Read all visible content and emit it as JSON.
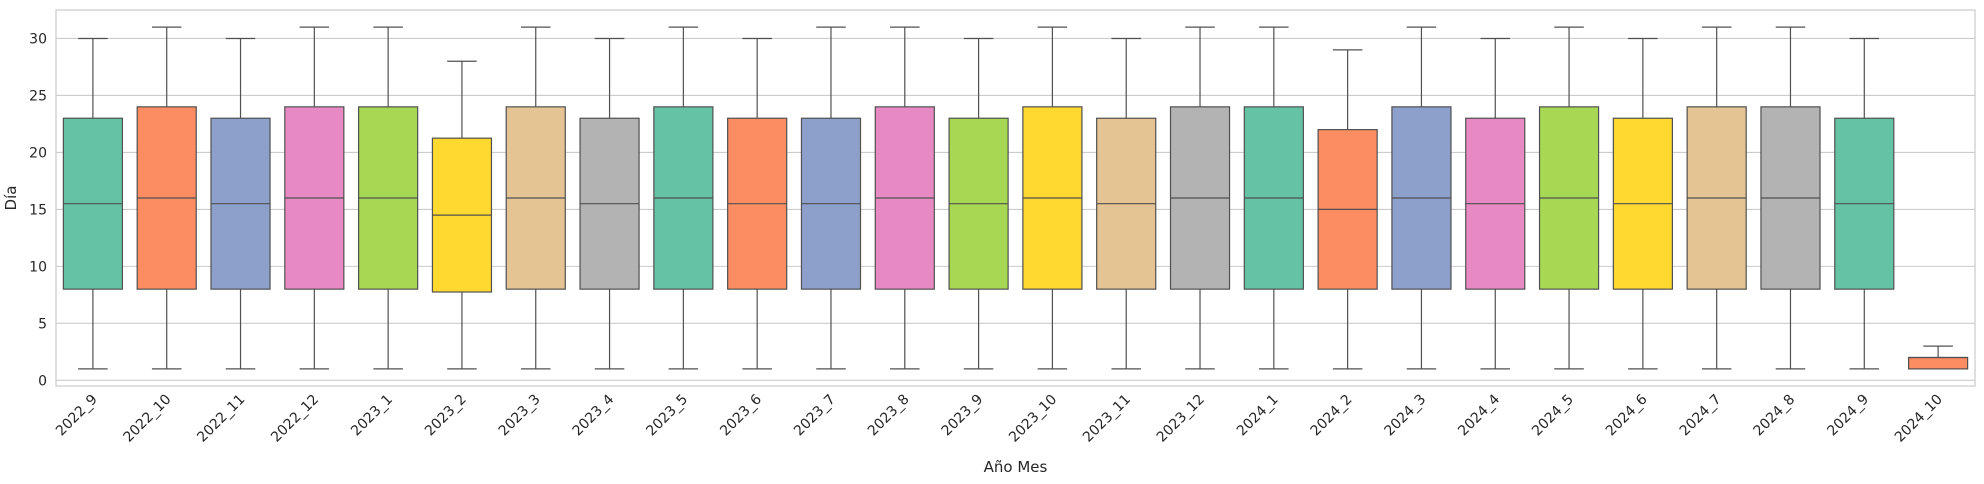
{
  "chart_data": {
    "type": "box",
    "xlabel": "Año Mes",
    "ylabel": "Día",
    "ylim": [
      -0.5,
      32.5
    ],
    "yticks": [
      0,
      5,
      10,
      15,
      20,
      25,
      30
    ],
    "grid": true,
    "palette": [
      "#66c2a5",
      "#fc8d62",
      "#8da0cb",
      "#e78ac3",
      "#a6d854",
      "#ffd92f",
      "#e5c494",
      "#b3b3b3"
    ],
    "categories": [
      "2022_9",
      "2022_10",
      "2022_11",
      "2022_12",
      "2023_1",
      "2023_2",
      "2023_3",
      "2023_4",
      "2023_5",
      "2023_6",
      "2023_7",
      "2023_8",
      "2023_9",
      "2023_10",
      "2023_11",
      "2023_12",
      "2024_1",
      "2024_2",
      "2024_3",
      "2024_4",
      "2024_5",
      "2024_6",
      "2024_7",
      "2024_8",
      "2024_9",
      "2024_10"
    ],
    "boxes": [
      {
        "min": 1,
        "q1": 8,
        "median": 15.5,
        "q3": 23,
        "max": 30
      },
      {
        "min": 1,
        "q1": 8,
        "median": 16,
        "q3": 24,
        "max": 31
      },
      {
        "min": 1,
        "q1": 8,
        "median": 15.5,
        "q3": 23,
        "max": 30
      },
      {
        "min": 1,
        "q1": 8,
        "median": 16,
        "q3": 24,
        "max": 31
      },
      {
        "min": 1,
        "q1": 8,
        "median": 16,
        "q3": 24,
        "max": 31
      },
      {
        "min": 1,
        "q1": 7.75,
        "median": 14.5,
        "q3": 21.25,
        "max": 28
      },
      {
        "min": 1,
        "q1": 8,
        "median": 16,
        "q3": 24,
        "max": 31
      },
      {
        "min": 1,
        "q1": 8,
        "median": 15.5,
        "q3": 23,
        "max": 30
      },
      {
        "min": 1,
        "q1": 8,
        "median": 16,
        "q3": 24,
        "max": 31
      },
      {
        "min": 1,
        "q1": 8,
        "median": 15.5,
        "q3": 23,
        "max": 30
      },
      {
        "min": 1,
        "q1": 8,
        "median": 15.5,
        "q3": 23,
        "max": 31
      },
      {
        "min": 1,
        "q1": 8,
        "median": 16,
        "q3": 24,
        "max": 31
      },
      {
        "min": 1,
        "q1": 8,
        "median": 15.5,
        "q3": 23,
        "max": 30
      },
      {
        "min": 1,
        "q1": 8,
        "median": 16,
        "q3": 24,
        "max": 31
      },
      {
        "min": 1,
        "q1": 8,
        "median": 15.5,
        "q3": 23,
        "max": 30
      },
      {
        "min": 1,
        "q1": 8,
        "median": 16,
        "q3": 24,
        "max": 31
      },
      {
        "min": 1,
        "q1": 8,
        "median": 16,
        "q3": 24,
        "max": 31
      },
      {
        "min": 1,
        "q1": 8,
        "median": 15,
        "q3": 22,
        "max": 29
      },
      {
        "min": 1,
        "q1": 8,
        "median": 16,
        "q3": 24,
        "max": 31
      },
      {
        "min": 1,
        "q1": 8,
        "median": 15.5,
        "q3": 23,
        "max": 30
      },
      {
        "min": 1,
        "q1": 8,
        "median": 16,
        "q3": 24,
        "max": 31
      },
      {
        "min": 1,
        "q1": 8,
        "median": 15.5,
        "q3": 23,
        "max": 30
      },
      {
        "min": 1,
        "q1": 8,
        "median": 16,
        "q3": 24,
        "max": 31
      },
      {
        "min": 1,
        "q1": 8,
        "median": 16,
        "q3": 24,
        "max": 31
      },
      {
        "min": 1,
        "q1": 8,
        "median": 15.5,
        "q3": 23,
        "max": 30
      },
      {
        "min": 1,
        "q1": 1,
        "median": 2,
        "q3": 2,
        "max": 3
      }
    ]
  }
}
